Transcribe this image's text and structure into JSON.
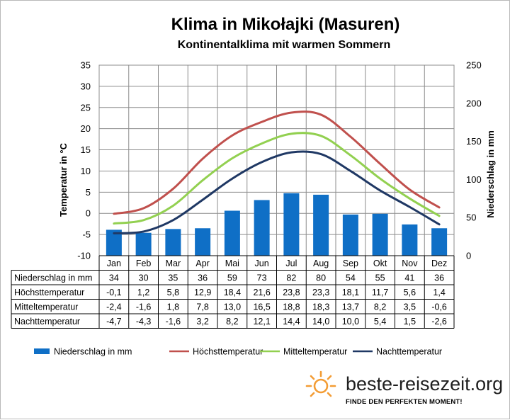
{
  "chart_data": {
    "type": "bar",
    "title": "Klima in Mikołajki (Masuren)",
    "subtitle": "Kontinentalklima  mit warmen Sommern",
    "categories": [
      "Jan",
      "Feb",
      "Mar",
      "Apr",
      "Mai",
      "Jun",
      "Jul",
      "Aug",
      "Sep",
      "Okt",
      "Nov",
      "Dez"
    ],
    "ylabel_left": "Temperatur in °C",
    "ylabel_right": "Niederschlag in mm",
    "ylim_left": [
      -10,
      35
    ],
    "yticks_left": [
      "35",
      "30",
      "25",
      "20",
      "15",
      "10",
      "5",
      "0",
      "-5",
      "-10"
    ],
    "ylim_right": [
      0,
      250
    ],
    "yticks_right": [
      "250",
      "200",
      "150",
      "100",
      "50",
      "0"
    ],
    "grid": true,
    "legend_position": "bottom",
    "series": [
      {
        "name": "Niederschlag in mm",
        "type": "bar",
        "axis": "right",
        "color": "#0f6fc6",
        "values": [
          34,
          30,
          35,
          36,
          59,
          73,
          82,
          80,
          54,
          55,
          41,
          36
        ],
        "labels": [
          "34",
          "30",
          "35",
          "36",
          "59",
          "73",
          "82",
          "80",
          "54",
          "55",
          "41",
          "36"
        ]
      },
      {
        "name": "Höchsttemperatur",
        "type": "line",
        "axis": "left",
        "color": "#c0504d",
        "values": [
          -0.1,
          1.2,
          5.8,
          12.9,
          18.4,
          21.6,
          23.8,
          23.3,
          18.1,
          11.7,
          5.6,
          1.4
        ],
        "labels": [
          "-0,1",
          "1,2",
          "5,8",
          "12,9",
          "18,4",
          "21,6",
          "23,8",
          "23,3",
          "18,1",
          "11,7",
          "5,6",
          "1,4"
        ]
      },
      {
        "name": "Mitteltemperatur",
        "type": "line",
        "axis": "left",
        "color": "#92d050",
        "values": [
          -2.4,
          -1.6,
          1.8,
          7.8,
          13.0,
          16.5,
          18.8,
          18.3,
          13.7,
          8.2,
          3.5,
          -0.6
        ],
        "labels": [
          "-2,4",
          "-1,6",
          "1,8",
          "7,8",
          "13,0",
          "16,5",
          "18,8",
          "18,3",
          "13,7",
          "8,2",
          "3,5",
          "-0,6"
        ]
      },
      {
        "name": "Nachttemperatur",
        "type": "line",
        "axis": "left",
        "color": "#1f3864",
        "values": [
          -4.7,
          -4.3,
          -1.6,
          3.2,
          8.2,
          12.1,
          14.4,
          14.0,
          10.0,
          5.4,
          1.5,
          -2.6
        ],
        "labels": [
          "-4,7",
          "-4,3",
          "-1,6",
          "3,2",
          "8,2",
          "12,1",
          "14,4",
          "14,0",
          "10,0",
          "5,4",
          "1,5",
          "-2,6"
        ]
      }
    ]
  },
  "branding": {
    "name": "beste-reisezeit.org",
    "slogan": "FINDE DEN PERFEKTEN MOMENT!",
    "logo_color": "#f39c34"
  }
}
